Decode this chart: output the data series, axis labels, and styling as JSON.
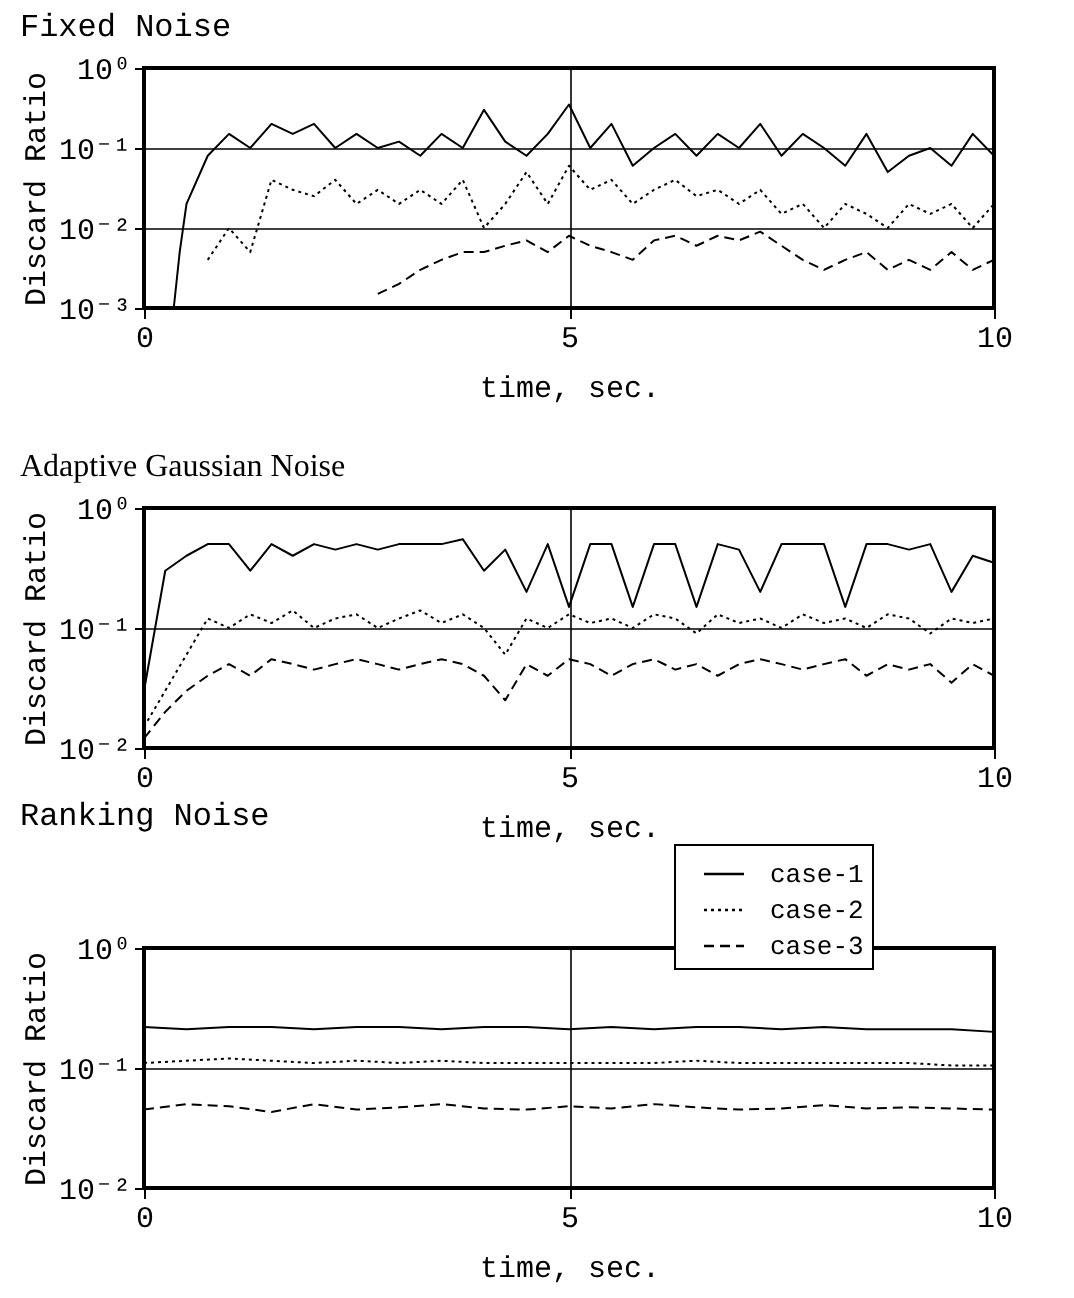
{
  "chart_data": [
    {
      "type": "line",
      "title": "Fixed Noise",
      "xlabel": "time, sec.",
      "ylabel": "Discard Ratio",
      "log": "y",
      "grid": true,
      "xlim": [
        0,
        10
      ],
      "xticks": [
        0,
        5,
        10
      ],
      "ylim": [
        0.001,
        1
      ],
      "yticks": [
        {
          "value": 0.001,
          "label": "10⁻³"
        },
        {
          "value": 0.01,
          "label": "10⁻²"
        },
        {
          "value": 0.1,
          "label": "10⁻¹"
        },
        {
          "value": 1,
          "label": "10⁰"
        }
      ],
      "x": [
        0.35,
        0.42,
        0.5,
        0.75,
        1,
        1.25,
        1.5,
        1.75,
        2,
        2.25,
        2.5,
        2.75,
        3,
        3.25,
        3.5,
        3.75,
        4,
        4.25,
        4.5,
        4.75,
        5,
        5.25,
        5.5,
        5.75,
        6,
        6.25,
        6.5,
        6.75,
        7,
        7.25,
        7.5,
        7.75,
        8,
        8.25,
        8.5,
        8.75,
        9,
        9.25,
        9.5,
        9.75,
        10
      ],
      "series": [
        {
          "color": "#000000",
          "line_style": "solid",
          "values": [
            0.001,
            0.005,
            0.02,
            0.08,
            0.15,
            0.1,
            0.2,
            0.15,
            0.2,
            0.1,
            0.15,
            0.1,
            0.12,
            0.08,
            0.15,
            0.1,
            0.3,
            0.12,
            0.08,
            0.15,
            0.35,
            0.1,
            0.2,
            0.06,
            0.1,
            0.15,
            0.08,
            0.15,
            0.1,
            0.2,
            0.08,
            0.15,
            0.1,
            0.06,
            0.15,
            0.05,
            0.08,
            0.1,
            0.06,
            0.15,
            0.08
          ]
        },
        {
          "color": "#000000",
          "line_style": "dotted",
          "values": [
            null,
            null,
            null,
            0.004,
            0.01,
            0.005,
            0.04,
            0.03,
            0.025,
            0.04,
            0.02,
            0.03,
            0.02,
            0.03,
            0.02,
            0.04,
            0.01,
            0.02,
            0.05,
            0.02,
            0.06,
            0.03,
            0.04,
            0.02,
            0.03,
            0.04,
            0.025,
            0.03,
            0.02,
            0.03,
            0.015,
            0.02,
            0.01,
            0.02,
            0.015,
            0.01,
            0.02,
            0.015,
            0.02,
            0.01,
            0.02
          ]
        },
        {
          "color": "#000000",
          "line_style": "dashed",
          "values": [
            null,
            null,
            null,
            null,
            null,
            null,
            null,
            null,
            null,
            null,
            null,
            0.0015,
            0.002,
            0.003,
            0.004,
            0.005,
            0.005,
            0.006,
            0.007,
            0.005,
            0.008,
            0.006,
            0.005,
            0.004,
            0.007,
            0.008,
            0.006,
            0.008,
            0.007,
            0.009,
            0.006,
            0.004,
            0.003,
            0.004,
            0.005,
            0.003,
            0.004,
            0.003,
            0.005,
            0.003,
            0.004
          ]
        }
      ]
    },
    {
      "type": "line",
      "title": "Adaptive Gaussian Noise",
      "xlabel": "time, sec.",
      "ylabel": "Discard Ratio",
      "log": "y",
      "grid": true,
      "xlim": [
        0,
        10
      ],
      "xticks": [
        0,
        5,
        10
      ],
      "ylim": [
        0.01,
        1
      ],
      "yticks": [
        {
          "value": 0.01,
          "label": "10⁻²"
        },
        {
          "value": 0.1,
          "label": "10⁻¹"
        },
        {
          "value": 1,
          "label": "10⁰"
        }
      ],
      "x": [
        0,
        0.25,
        0.5,
        0.75,
        1,
        1.25,
        1.5,
        1.75,
        2,
        2.25,
        2.5,
        2.75,
        3,
        3.25,
        3.5,
        3.75,
        4,
        4.25,
        4.5,
        4.75,
        5,
        5.25,
        5.5,
        5.75,
        6,
        6.25,
        6.5,
        6.75,
        7,
        7.25,
        7.5,
        7.75,
        8,
        8.25,
        8.5,
        8.75,
        9,
        9.25,
        9.5,
        9.75,
        10
      ],
      "series": [
        {
          "color": "#000000",
          "line_style": "solid",
          "values": [
            0.03,
            0.3,
            0.4,
            0.5,
            0.5,
            0.3,
            0.5,
            0.4,
            0.5,
            0.45,
            0.5,
            0.45,
            0.5,
            0.5,
            0.5,
            0.55,
            0.3,
            0.45,
            0.2,
            0.5,
            0.15,
            0.5,
            0.5,
            0.15,
            0.5,
            0.5,
            0.15,
            0.5,
            0.45,
            0.2,
            0.5,
            0.5,
            0.5,
            0.15,
            0.5,
            0.5,
            0.45,
            0.5,
            0.2,
            0.4,
            0.35
          ]
        },
        {
          "color": "#000000",
          "line_style": "dotted",
          "values": [
            0.015,
            0.03,
            0.06,
            0.12,
            0.1,
            0.13,
            0.11,
            0.14,
            0.1,
            0.12,
            0.13,
            0.1,
            0.12,
            0.14,
            0.11,
            0.13,
            0.1,
            0.06,
            0.12,
            0.1,
            0.13,
            0.11,
            0.12,
            0.1,
            0.13,
            0.12,
            0.09,
            0.13,
            0.11,
            0.12,
            0.1,
            0.13,
            0.11,
            0.12,
            0.1,
            0.13,
            0.12,
            0.09,
            0.12,
            0.11,
            0.12
          ]
        },
        {
          "color": "#000000",
          "line_style": "dashed",
          "values": [
            0.012,
            0.02,
            0.03,
            0.04,
            0.05,
            0.04,
            0.055,
            0.05,
            0.045,
            0.05,
            0.055,
            0.05,
            0.045,
            0.05,
            0.055,
            0.05,
            0.04,
            0.025,
            0.05,
            0.04,
            0.055,
            0.05,
            0.04,
            0.05,
            0.055,
            0.045,
            0.05,
            0.04,
            0.05,
            0.055,
            0.05,
            0.045,
            0.05,
            0.055,
            0.04,
            0.05,
            0.045,
            0.05,
            0.035,
            0.05,
            0.04
          ]
        }
      ]
    },
    {
      "type": "line",
      "title": "Ranking Noise",
      "xlabel": "time, sec.",
      "ylabel": "Discard Ratio",
      "log": "y",
      "grid": true,
      "legend": "top right",
      "xlim": [
        0,
        10
      ],
      "xticks": [
        0,
        5,
        10
      ],
      "ylim": [
        0.01,
        1
      ],
      "yticks": [
        {
          "value": 0.01,
          "label": "10⁻²"
        },
        {
          "value": 0.1,
          "label": "10⁻¹"
        },
        {
          "value": 1,
          "label": "10⁰"
        }
      ],
      "x": [
        0,
        0.5,
        1,
        1.5,
        2,
        2.5,
        3,
        3.5,
        4,
        4.5,
        5,
        5.5,
        6,
        6.5,
        7,
        7.5,
        8,
        8.5,
        9,
        9.5,
        10
      ],
      "series": [
        {
          "name": "case-1",
          "color": "#000000",
          "line_style": "solid",
          "values": [
            0.22,
            0.21,
            0.22,
            0.22,
            0.21,
            0.22,
            0.22,
            0.21,
            0.22,
            0.22,
            0.21,
            0.22,
            0.21,
            0.22,
            0.22,
            0.21,
            0.22,
            0.21,
            0.21,
            0.21,
            0.2
          ]
        },
        {
          "name": "case-2",
          "color": "#000000",
          "line_style": "dotted",
          "values": [
            0.11,
            0.115,
            0.12,
            0.115,
            0.11,
            0.115,
            0.11,
            0.115,
            0.11,
            0.11,
            0.11,
            0.11,
            0.11,
            0.115,
            0.11,
            0.11,
            0.11,
            0.11,
            0.11,
            0.105,
            0.105
          ]
        },
        {
          "name": "case-3",
          "color": "#000000",
          "line_style": "dashed",
          "values": [
            0.045,
            0.05,
            0.048,
            0.043,
            0.05,
            0.045,
            0.047,
            0.05,
            0.046,
            0.045,
            0.048,
            0.046,
            0.05,
            0.047,
            0.045,
            0.046,
            0.049,
            0.046,
            0.047,
            0.046,
            0.045
          ]
        }
      ]
    }
  ]
}
